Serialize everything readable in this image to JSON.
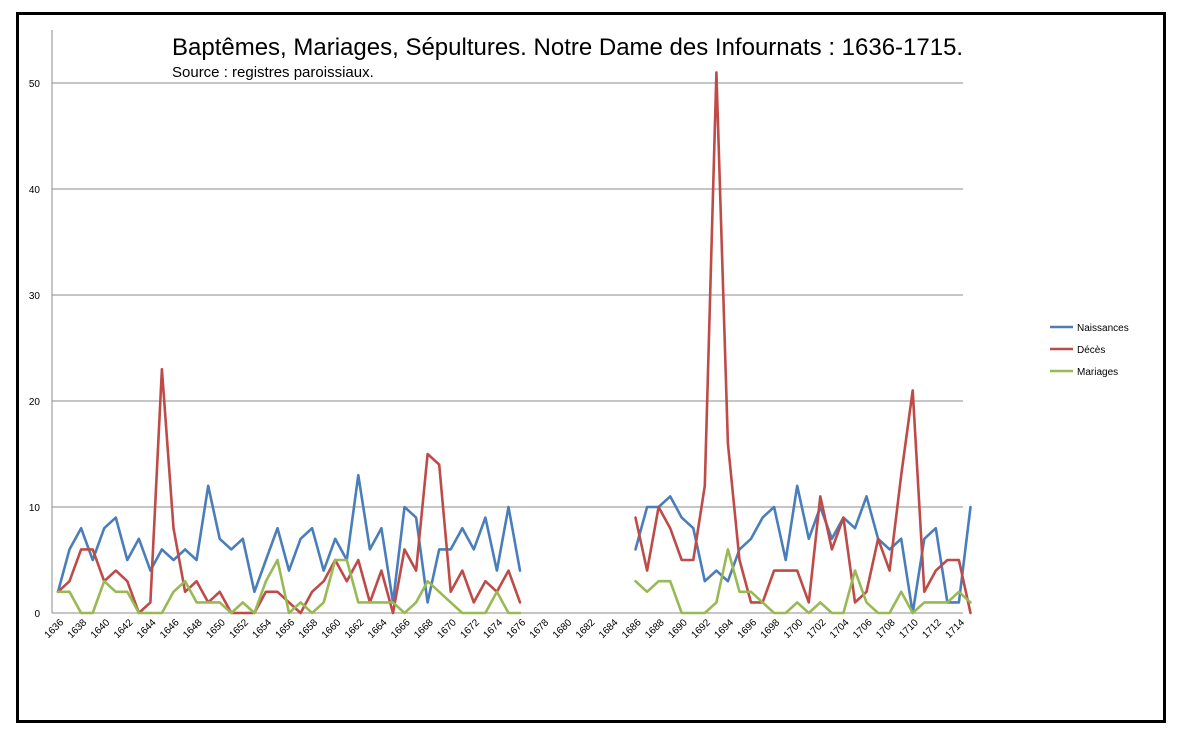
{
  "chart_data": {
    "type": "line",
    "title": "Baptêmes, Mariages, Sépultures. Notre Dame des Infournats : 1636-1715.",
    "subtitle": "Source : registres paroissiaux.",
    "xlabel": "",
    "ylabel": "",
    "ylim": [
      0,
      55
    ],
    "yticks": [
      0,
      10,
      20,
      30,
      40,
      50
    ],
    "grid": true,
    "legend_position": "right",
    "x": [
      1636,
      1637,
      1638,
      1639,
      1640,
      1641,
      1642,
      1643,
      1644,
      1645,
      1646,
      1647,
      1648,
      1649,
      1650,
      1651,
      1652,
      1653,
      1654,
      1655,
      1656,
      1657,
      1658,
      1659,
      1660,
      1661,
      1662,
      1663,
      1664,
      1665,
      1666,
      1667,
      1668,
      1669,
      1670,
      1671,
      1672,
      1673,
      1674,
      1675,
      1676,
      1677,
      1678,
      1679,
      1680,
      1681,
      1682,
      1683,
      1684,
      1685,
      1686,
      1687,
      1688,
      1689,
      1690,
      1691,
      1692,
      1693,
      1694,
      1695,
      1696,
      1697,
      1698,
      1699,
      1700,
      1701,
      1702,
      1703,
      1704,
      1705,
      1706,
      1707,
      1708,
      1709,
      1710,
      1711,
      1712,
      1713,
      1714,
      1715
    ],
    "xtick_labels": [
      "1636",
      "1638",
      "1640",
      "1642",
      "1644",
      "1646",
      "1648",
      "1650",
      "1652",
      "1654",
      "1656",
      "1658",
      "1660",
      "1662",
      "1664",
      "1666",
      "1668",
      "1670",
      "1672",
      "1674",
      "1676",
      "1678",
      "1680",
      "1682",
      "1684",
      "1686",
      "1688",
      "1690",
      "1692",
      "1694",
      "1696",
      "1698",
      "1700",
      "1702",
      "1704",
      "1706",
      "1708",
      "1710",
      "1712",
      "1714"
    ],
    "series": [
      {
        "name": "Naissances",
        "color": "#4a7ebb",
        "values": [
          2,
          6,
          8,
          5,
          8,
          9,
          5,
          7,
          4,
          6,
          5,
          6,
          5,
          12,
          7,
          6,
          7,
          2,
          5,
          8,
          4,
          7,
          8,
          4,
          7,
          5,
          13,
          6,
          8,
          1,
          10,
          9,
          1,
          6,
          6,
          8,
          6,
          9,
          4,
          10,
          4,
          null,
          null,
          null,
          null,
          null,
          null,
          null,
          null,
          null,
          6,
          10,
          10,
          11,
          9,
          8,
          3,
          4,
          3,
          6,
          7,
          9,
          10,
          5,
          12,
          7,
          10,
          7,
          9,
          8,
          11,
          7,
          6,
          7,
          0,
          7,
          8,
          1,
          1,
          10
        ]
      },
      {
        "name": "Décès",
        "color": "#be4b48",
        "values": [
          2,
          3,
          6,
          6,
          3,
          4,
          3,
          0,
          1,
          23,
          8,
          2,
          3,
          1,
          2,
          0,
          0,
          0,
          2,
          2,
          1,
          0,
          2,
          3,
          5,
          3,
          5,
          1,
          4,
          0,
          6,
          4,
          15,
          14,
          2,
          4,
          1,
          3,
          2,
          4,
          1,
          null,
          null,
          null,
          null,
          null,
          null,
          null,
          null,
          null,
          9,
          4,
          10,
          8,
          5,
          5,
          12,
          51,
          16,
          5,
          1,
          1,
          4,
          4,
          4,
          1,
          11,
          6,
          9,
          1,
          2,
          7,
          4,
          13,
          21,
          2,
          4,
          5,
          5,
          0
        ]
      },
      {
        "name": "Mariages",
        "color": "#98b954",
        "values": [
          2,
          2,
          0,
          0,
          3,
          2,
          2,
          0,
          0,
          0,
          2,
          3,
          1,
          1,
          1,
          0,
          1,
          0,
          3,
          5,
          0,
          1,
          0,
          1,
          5,
          5,
          1,
          1,
          1,
          1,
          0,
          1,
          3,
          2,
          1,
          0,
          0,
          0,
          2,
          0,
          0,
          null,
          null,
          null,
          null,
          null,
          null,
          null,
          null,
          null,
          3,
          2,
          3,
          3,
          0,
          0,
          0,
          1,
          6,
          2,
          2,
          1,
          0,
          0,
          1,
          0,
          1,
          0,
          0,
          4,
          1,
          0,
          0,
          2,
          0,
          1,
          1,
          1,
          2,
          1
        ]
      }
    ]
  }
}
